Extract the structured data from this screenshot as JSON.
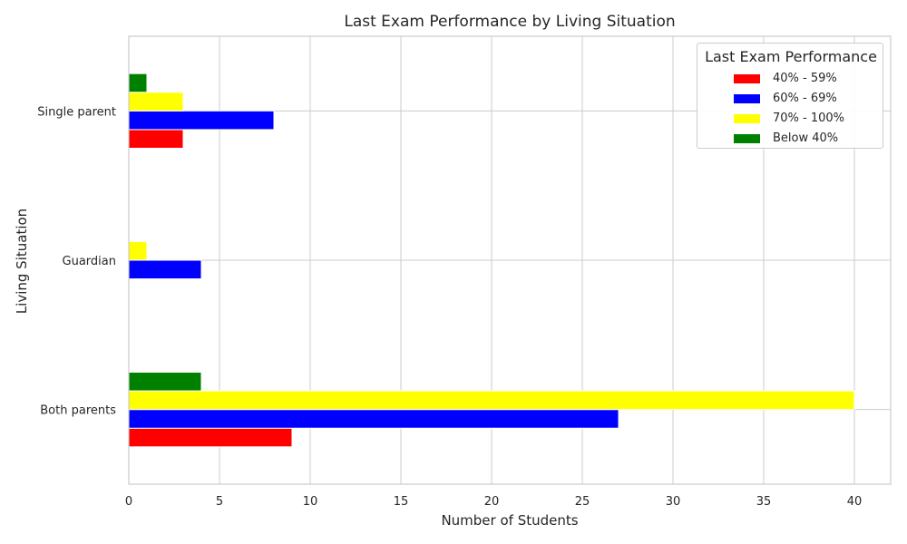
{
  "chart_data": {
    "type": "bar",
    "orientation": "horizontal",
    "title": "Last Exam Performance by Living Situation",
    "xlabel": "Number of Students",
    "ylabel": "Living Situation",
    "categories": [
      "Both parents",
      "Guardian",
      "Single parent"
    ],
    "series": [
      {
        "name": "40% - 59%",
        "color": "#ff0000",
        "values": [
          9,
          0,
          3
        ]
      },
      {
        "name": "60% - 69%",
        "color": "#0000ff",
        "values": [
          27,
          4,
          8
        ]
      },
      {
        "name": "70% - 100%",
        "color": "#ffff00",
        "values": [
          40,
          1,
          3
        ]
      },
      {
        "name": "Below 40%",
        "color": "#008000",
        "values": [
          4,
          0,
          1
        ]
      }
    ],
    "xlim": [
      0,
      42
    ],
    "xticks": [
      0,
      5,
      10,
      15,
      20,
      25,
      30,
      35,
      40
    ],
    "grid": true,
    "legend": {
      "title": "Last Exam Performance",
      "position": "upper right"
    }
  }
}
